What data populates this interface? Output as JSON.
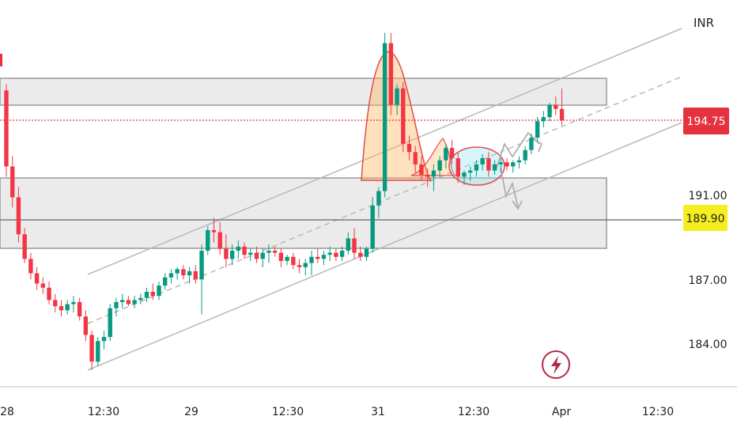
{
  "chart_data": {
    "type": "candlestick",
    "currency": "INR",
    "y_ticks": [
      "191.00",
      "187.00",
      "184.00"
    ],
    "x_ticks": [
      "28",
      "12:30",
      "29",
      "12:30",
      "31",
      "12:30",
      "Apr",
      "12:30"
    ],
    "current_price": {
      "label": "194.75",
      "value": 194.75,
      "color": "#e5323f"
    },
    "marked_level": {
      "label": "189.90",
      "value": 189.9,
      "color": "#f5ee1e"
    },
    "candles": [
      [
        196.2,
        196.5,
        192.0,
        192.5
      ],
      [
        192.5,
        193.0,
        190.5,
        191.0
      ],
      [
        191.0,
        191.5,
        188.8,
        189.2
      ],
      [
        189.2,
        189.5,
        187.8,
        188.0
      ],
      [
        188.0,
        188.3,
        187.0,
        187.3
      ],
      [
        187.3,
        187.6,
        186.5,
        186.8
      ],
      [
        186.8,
        187.1,
        186.3,
        186.6
      ],
      [
        186.6,
        186.9,
        185.8,
        186.0
      ],
      [
        186.0,
        186.3,
        185.4,
        185.7
      ],
      [
        185.7,
        186.0,
        185.2,
        185.5
      ],
      [
        185.5,
        186.0,
        185.3,
        185.8
      ],
      [
        185.8,
        186.2,
        185.4,
        185.9
      ],
      [
        185.9,
        186.1,
        185.0,
        185.2
      ],
      [
        185.2,
        185.5,
        184.0,
        184.3
      ],
      [
        184.3,
        184.5,
        182.6,
        183.0
      ],
      [
        183.0,
        184.2,
        182.8,
        184.0
      ],
      [
        184.0,
        184.5,
        183.6,
        184.2
      ],
      [
        184.2,
        185.8,
        184.0,
        185.6
      ],
      [
        185.6,
        186.1,
        185.2,
        185.9
      ],
      [
        185.9,
        186.3,
        185.6,
        186.0
      ],
      [
        186.0,
        186.2,
        185.7,
        185.8
      ],
      [
        185.8,
        186.2,
        185.6,
        186.0
      ],
      [
        186.0,
        186.3,
        185.8,
        186.1
      ],
      [
        186.1,
        186.6,
        185.9,
        186.4
      ],
      [
        186.4,
        186.8,
        186.0,
        186.2
      ],
      [
        186.2,
        186.9,
        186.0,
        186.7
      ],
      [
        186.7,
        187.3,
        186.5,
        187.1
      ],
      [
        187.1,
        187.5,
        186.8,
        187.3
      ],
      [
        187.3,
        187.6,
        187.0,
        187.5
      ],
      [
        187.5,
        187.7,
        187.0,
        187.2
      ],
      [
        187.2,
        187.6,
        186.8,
        187.4
      ],
      [
        187.4,
        187.7,
        186.8,
        187.0
      ],
      [
        187.0,
        188.7,
        185.3,
        188.4
      ],
      [
        188.4,
        189.6,
        188.2,
        189.4
      ],
      [
        189.4,
        190.0,
        188.8,
        189.3
      ],
      [
        189.3,
        189.8,
        188.2,
        188.5
      ],
      [
        188.5,
        189.2,
        187.6,
        188.0
      ],
      [
        188.0,
        188.7,
        187.7,
        188.4
      ],
      [
        188.4,
        188.9,
        188.0,
        188.6
      ],
      [
        188.6,
        188.8,
        188.0,
        188.2
      ],
      [
        188.2,
        188.5,
        187.9,
        188.3
      ],
      [
        188.3,
        188.6,
        187.8,
        188.0
      ],
      [
        188.0,
        188.5,
        187.6,
        188.3
      ],
      [
        188.3,
        188.7,
        187.8,
        188.4
      ],
      [
        188.4,
        188.6,
        188.1,
        188.3
      ],
      [
        188.3,
        188.5,
        187.6,
        187.9
      ],
      [
        187.9,
        188.2,
        187.7,
        188.1
      ],
      [
        188.1,
        188.3,
        187.5,
        187.7
      ],
      [
        187.7,
        188.0,
        187.3,
        187.6
      ],
      [
        187.6,
        188.0,
        187.2,
        187.8
      ],
      [
        187.8,
        188.4,
        187.2,
        188.1
      ],
      [
        188.1,
        188.5,
        187.8,
        188.0
      ],
      [
        188.0,
        188.4,
        187.7,
        188.2
      ],
      [
        188.2,
        188.6,
        187.9,
        188.3
      ],
      [
        188.3,
        188.5,
        187.9,
        188.1
      ],
      [
        188.1,
        188.6,
        187.9,
        188.4
      ],
      [
        188.4,
        189.3,
        188.2,
        189.0
      ],
      [
        189.0,
        189.5,
        188.0,
        188.3
      ],
      [
        188.3,
        188.6,
        187.9,
        188.1
      ],
      [
        188.1,
        188.6,
        187.9,
        188.5
      ],
      [
        188.5,
        191.0,
        188.3,
        190.6
      ],
      [
        190.6,
        191.5,
        190.0,
        191.3
      ],
      [
        191.3,
        199.0,
        191.0,
        198.5
      ],
      [
        198.5,
        199.0,
        195.0,
        195.5
      ],
      [
        195.5,
        196.5,
        195.0,
        196.3
      ],
      [
        196.3,
        196.6,
        193.2,
        193.6
      ],
      [
        193.6,
        194.0,
        192.8,
        193.2
      ],
      [
        193.2,
        193.5,
        192.2,
        192.6
      ],
      [
        192.6,
        193.0,
        191.8,
        192.1
      ],
      [
        192.1,
        192.4,
        191.5,
        192.0
      ],
      [
        192.0,
        192.6,
        191.3,
        192.3
      ],
      [
        192.3,
        193.0,
        192.0,
        192.8
      ],
      [
        192.8,
        193.6,
        192.4,
        193.4
      ],
      [
        193.4,
        193.8,
        192.6,
        192.9
      ],
      [
        192.9,
        193.2,
        191.7,
        192.0
      ],
      [
        192.0,
        192.3,
        191.6,
        192.2
      ],
      [
        192.2,
        192.5,
        191.8,
        192.3
      ],
      [
        192.3,
        192.8,
        192.0,
        192.6
      ],
      [
        192.6,
        193.1,
        192.3,
        192.9
      ],
      [
        192.9,
        193.2,
        192.0,
        192.3
      ],
      [
        192.3,
        192.8,
        192.1,
        192.6
      ],
      [
        192.6,
        192.9,
        192.2,
        192.7
      ],
      [
        192.7,
        192.9,
        192.3,
        192.5
      ],
      [
        192.5,
        192.8,
        192.2,
        192.7
      ],
      [
        192.7,
        193.0,
        192.4,
        192.8
      ],
      [
        192.8,
        193.5,
        192.6,
        193.3
      ],
      [
        193.3,
        194.1,
        193.1,
        193.9
      ],
      [
        193.9,
        194.9,
        193.7,
        194.7
      ],
      [
        194.7,
        195.2,
        194.4,
        194.9
      ],
      [
        194.9,
        195.6,
        194.7,
        195.5
      ],
      [
        195.5,
        195.9,
        195.0,
        195.3
      ],
      [
        195.3,
        196.3,
        194.5,
        194.75
      ]
    ]
  }
}
